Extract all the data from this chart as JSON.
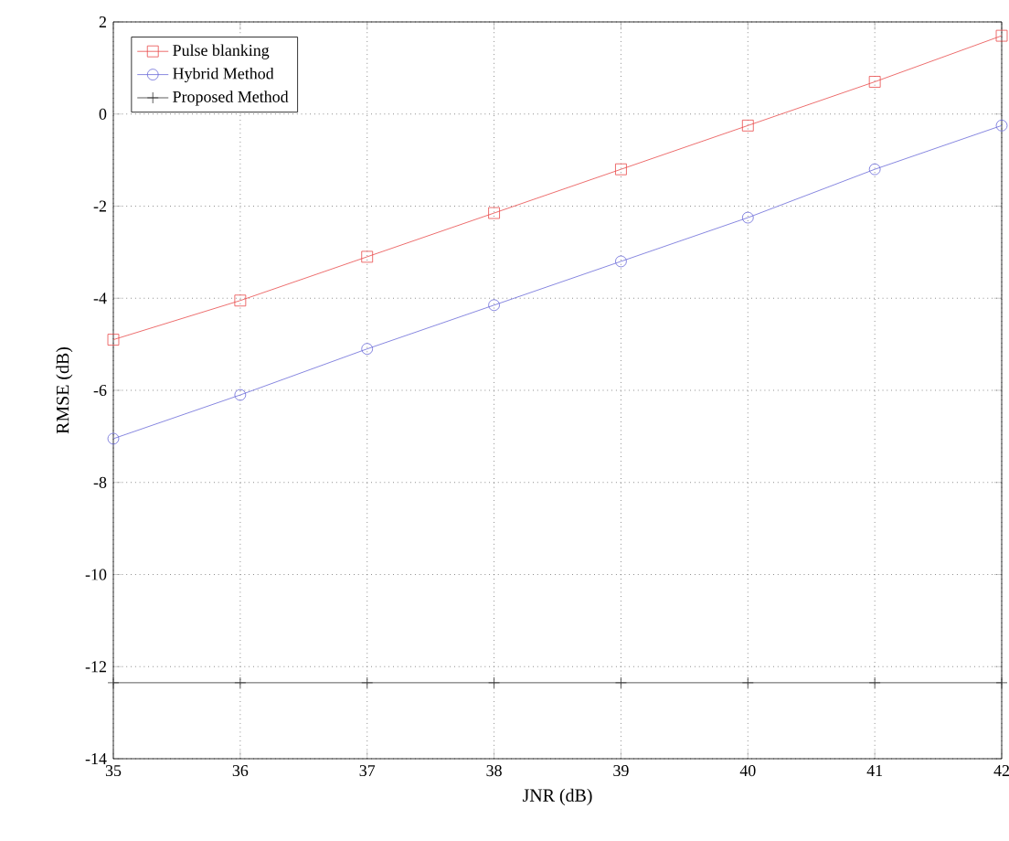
{
  "chart_data": {
    "type": "line",
    "xlabel": "JNR (dB)",
    "ylabel": "RMSE (dB)",
    "x": [
      35,
      36,
      37,
      38,
      39,
      40,
      41,
      42
    ],
    "series": [
      {
        "name": "Pulse blanking",
        "color": "#e84a4a",
        "marker": "square",
        "values": [
          -4.9,
          -4.05,
          -3.1,
          -2.15,
          -1.2,
          -0.25,
          0.7,
          1.7
        ]
      },
      {
        "name": "Hybrid Method",
        "color": "#6a6ad8",
        "marker": "circle",
        "values": [
          -7.05,
          -6.1,
          -5.1,
          -4.15,
          -3.2,
          -2.25,
          -1.2,
          -0.25
        ]
      },
      {
        "name": "Proposed Method",
        "color": "#333333",
        "marker": "cross",
        "values": [
          -12.35,
          -12.35,
          -12.35,
          -12.35,
          -12.35,
          -12.35,
          -12.35,
          -12.35
        ]
      }
    ],
    "xlim": [
      35,
      42
    ],
    "ylim": [
      -14,
      2
    ],
    "xticks": [
      35,
      36,
      37,
      38,
      39,
      40,
      41,
      42
    ],
    "yticks": [
      -14,
      -12,
      -10,
      -8,
      -6,
      -4,
      -2,
      0,
      2
    ],
    "grid": true,
    "legend": "top left",
    "line_style": "solid"
  }
}
